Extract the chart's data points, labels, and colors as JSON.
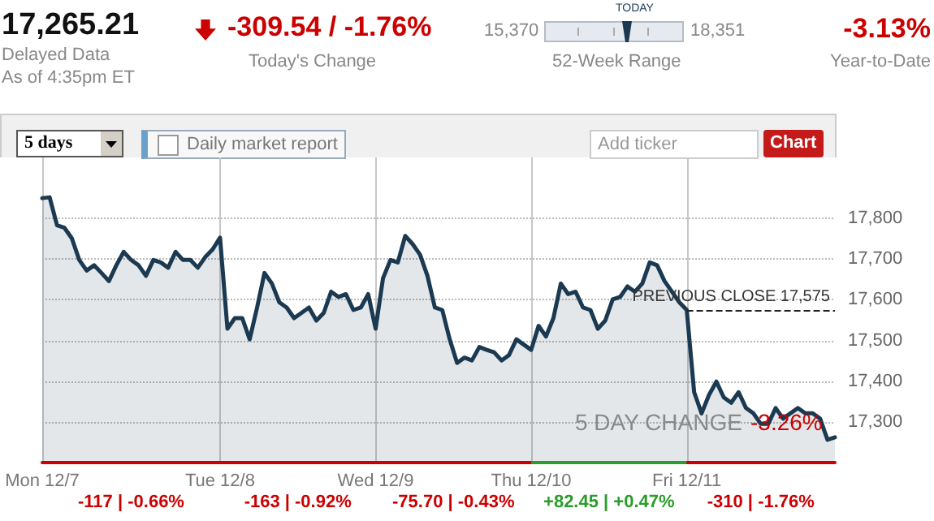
{
  "chart_data": {
    "type": "area",
    "color": "#1b3a52",
    "categories": [
      "Mon 12/7",
      null,
      null,
      null,
      null,
      null,
      null,
      null,
      null,
      null,
      null,
      null,
      null,
      null,
      null,
      null,
      null,
      null,
      null,
      null,
      null,
      null,
      null,
      null,
      "Tue 12/8",
      null,
      null,
      null,
      null,
      null,
      null,
      null,
      null,
      null,
      null,
      null,
      null,
      null,
      null,
      null,
      null,
      null,
      null,
      null,
      null,
      "Wed 12/9",
      null,
      null,
      null,
      null,
      null,
      null,
      null,
      null,
      null,
      null,
      null,
      null,
      null,
      null,
      null,
      null,
      null,
      null,
      null,
      null,
      "Thu 12/10",
      null,
      null,
      null,
      null,
      null,
      null,
      null,
      null,
      null,
      null,
      null,
      null,
      null,
      null,
      null,
      null,
      null,
      null,
      null,
      null,
      "Fri 12/11",
      null,
      null,
      null,
      null,
      null,
      null,
      null,
      null,
      null,
      null,
      null,
      null,
      null,
      null,
      null,
      null,
      null,
      null,
      null,
      null
    ],
    "values": [
      17850,
      17852,
      17783,
      17777,
      17751,
      17698,
      17672,
      17685,
      17666,
      17646,
      17685,
      17718,
      17698,
      17685,
      17659,
      17698,
      17692,
      17679,
      17718,
      17698,
      17698,
      17679,
      17705,
      17724,
      17753,
      17529,
      17555,
      17555,
      17503,
      17581,
      17666,
      17640,
      17594,
      17581,
      17555,
      17568,
      17581,
      17549,
      17568,
      17620,
      17607,
      17614,
      17575,
      17581,
      17614,
      17529,
      17653,
      17698,
      17692,
      17757,
      17737,
      17711,
      17659,
      17581,
      17575,
      17503,
      17445,
      17458,
      17451,
      17484,
      17477,
      17471,
      17451,
      17464,
      17503,
      17490,
      17477,
      17536,
      17510,
      17555,
      17640,
      17614,
      17620,
      17581,
      17575,
      17529,
      17549,
      17601,
      17607,
      17633,
      17620,
      17640,
      17692,
      17685,
      17646,
      17620,
      17594,
      17575,
      17373,
      17321,
      17366,
      17399,
      17360,
      17347,
      17373,
      17334,
      17321,
      17295,
      17295,
      17334,
      17308,
      17321,
      17334,
      17321,
      17321,
      17308,
      17256,
      17262
    ],
    "ylim": [
      17200,
      17950
    ],
    "yticks": [
      {
        "value": 17300,
        "label": "17,300"
      },
      {
        "value": 17400,
        "label": "17,400"
      },
      {
        "value": 17500,
        "label": "17,500"
      },
      {
        "value": 17600,
        "label": "17,600"
      },
      {
        "value": 17700,
        "label": "17,700"
      },
      {
        "value": 17800,
        "label": "17,800"
      }
    ],
    "grid": true,
    "ref_lines": [
      {
        "axis": "y",
        "value": 17575,
        "label": "PREVIOUS CLOSE 17,575",
        "line_style": "dashed"
      }
    ],
    "annotations": [
      "17,265.21",
      "Delayed Data",
      "As of 4:35pm ET",
      "-309.54 / -1.76%",
      "Today's Change",
      "15,370",
      "TODAY",
      "18,351",
      "52-Week Range",
      "-3.13%",
      "Year-to-Date",
      "5 days",
      "Daily market report",
      "Add ticker",
      "Chart",
      "5 DAY CHANGE",
      "-3.26%",
      "-117 | -0.66%",
      "-163 | -0.92%",
      "-75.70 | -0.43%",
      "+82.45 | +0.47%",
      "-310 | -1.76%"
    ]
  }
}
